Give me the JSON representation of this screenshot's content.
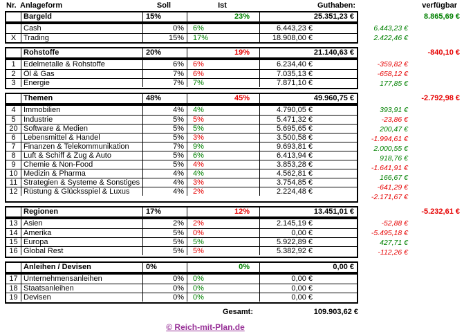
{
  "colors": {
    "positive": "#008000",
    "negative": "#e60000",
    "link_purple": "#993399",
    "border": "#000000"
  },
  "header": {
    "nr": "Nr.",
    "anlageform": "Anlageform",
    "soll": "Soll",
    "ist": "Ist",
    "guthaben": "Guthaben:",
    "verfuegbar": "verfügbar"
  },
  "sections": [
    {
      "name": "Bargeld",
      "soll": "15%",
      "ist": "23%",
      "ist_trend": "pos",
      "guthaben": "25.351,23 €",
      "verfuegbar": "8.865,69 €",
      "verfuegbar_trend": "pos",
      "rows": [
        {
          "nr": "",
          "label": "Cash",
          "soll": "0%",
          "ist": "6%",
          "ist_trend": "pos",
          "guthaben": "6.443,23 €",
          "diff": "6.443,23 €",
          "diff_trend": "pos"
        },
        {
          "nr": "X",
          "label": "Trading",
          "soll": "15%",
          "ist": "17%",
          "ist_trend": "pos",
          "guthaben": "18.908,00 €",
          "diff": "2.422,46 €",
          "diff_trend": "pos"
        }
      ]
    },
    {
      "name": "Rohstoffe",
      "soll": "20%",
      "ist": "19%",
      "ist_trend": "neg",
      "guthaben": "21.140,63 €",
      "verfuegbar": "-840,10 €",
      "verfuegbar_trend": "neg",
      "rows": [
        {
          "nr": "1",
          "label": "Edelmetalle & Rohstoffe",
          "soll": "6%",
          "ist": "6%",
          "ist_trend": "neg",
          "guthaben": "6.234,40 €",
          "diff": "-359,82 €",
          "diff_trend": "neg"
        },
        {
          "nr": "2",
          "label": "Öl & Gas",
          "soll": "7%",
          "ist": "6%",
          "ist_trend": "neg",
          "guthaben": "7.035,13 €",
          "diff": "-658,12 €",
          "diff_trend": "neg"
        },
        {
          "nr": "3",
          "label": "Energie",
          "soll": "7%",
          "ist": "7%",
          "ist_trend": "pos",
          "guthaben": "7.871,10 €",
          "diff": "177,85 €",
          "diff_trend": "pos"
        }
      ]
    },
    {
      "name": "Themen",
      "soll": "48%",
      "ist": "45%",
      "ist_trend": "neg",
      "guthaben": "49.960,75 €",
      "verfuegbar": "-2.792,98 €",
      "verfuegbar_trend": "neg",
      "rows": [
        {
          "nr": "4",
          "label": "Immobilien",
          "soll": "4%",
          "ist": "4%",
          "ist_trend": "pos",
          "guthaben": "4.790,05 €",
          "diff": "393,91 €",
          "diff_trend": "pos"
        },
        {
          "nr": "5",
          "label": "Industrie",
          "soll": "5%",
          "ist": "5%",
          "ist_trend": "neg",
          "guthaben": "5.471,32 €",
          "diff": "-23,86 €",
          "diff_trend": "neg"
        },
        {
          "nr": "20",
          "label": "Software & Medien",
          "soll": "5%",
          "ist": "5%",
          "ist_trend": "pos",
          "guthaben": "5.695,65 €",
          "diff": "200,47 €",
          "diff_trend": "pos"
        },
        {
          "nr": "6",
          "label": "Lebensmittel & Handel",
          "soll": "5%",
          "ist": "3%",
          "ist_trend": "neg",
          "guthaben": "3.500,58 €",
          "diff": "-1.994,61 €",
          "diff_trend": "neg"
        },
        {
          "nr": "7",
          "label": "Finanzen & Telekommunikation",
          "soll": "7%",
          "ist": "9%",
          "ist_trend": "pos",
          "guthaben": "9.693,81 €",
          "diff": "2.000,55 €",
          "diff_trend": "pos"
        },
        {
          "nr": "8",
          "label": "Luft & Schiff & Zug & Auto",
          "soll": "5%",
          "ist": "6%",
          "ist_trend": "pos",
          "guthaben": "6.413,94 €",
          "diff": "918,76 €",
          "diff_trend": "pos"
        },
        {
          "nr": "9",
          "label": "Chemie & Non-Food",
          "soll": "5%",
          "ist": "4%",
          "ist_trend": "neg",
          "guthaben": "3.853,28 €",
          "diff": "-1.641,91 €",
          "diff_trend": "neg"
        },
        {
          "nr": "10",
          "label": "Medizin & Pharma",
          "soll": "4%",
          "ist": "4%",
          "ist_trend": "pos",
          "guthaben": "4.562,81 €",
          "diff": "166,67 €",
          "diff_trend": "pos"
        },
        {
          "nr": "11",
          "label": "Strategien & Systeme & Sonstiges",
          "soll": "4%",
          "ist": "3%",
          "ist_trend": "neg",
          "guthaben": "3.754,85 €",
          "diff": "-641,29 €",
          "diff_trend": "neg"
        },
        {
          "nr": "12",
          "label": "Rüstung & Glücksspiel & Luxus",
          "soll": "4%",
          "ist": "2%",
          "ist_trend": "neg",
          "guthaben": "2.224,48 €",
          "diff": "-2.171,67 €",
          "diff_trend": "neg"
        }
      ]
    },
    {
      "name": "Regionen",
      "soll": "17%",
      "ist": "12%",
      "ist_trend": "neg",
      "guthaben": "13.451,01 €",
      "verfuegbar": "-5.232,61 €",
      "verfuegbar_trend": "neg",
      "rows": [
        {
          "nr": "13",
          "label": "Asien",
          "soll": "2%",
          "ist": "2%",
          "ist_trend": "neg",
          "guthaben": "2.145,19 €",
          "diff": "-52,88 €",
          "diff_trend": "neg"
        },
        {
          "nr": "14",
          "label": "Amerika",
          "soll": "5%",
          "ist": "0%",
          "ist_trend": "neg",
          "guthaben": "0,00 €",
          "diff": "-5.495,18 €",
          "diff_trend": "neg"
        },
        {
          "nr": "15",
          "label": "Europa",
          "soll": "5%",
          "ist": "5%",
          "ist_trend": "pos",
          "guthaben": "5.922,89 €",
          "diff": "427,71 €",
          "diff_trend": "pos"
        },
        {
          "nr": "16",
          "label": "Global Rest",
          "soll": "5%",
          "ist": "5%",
          "ist_trend": "neg",
          "guthaben": "5.382,92 €",
          "diff": "-112,26 €",
          "diff_trend": "neg"
        }
      ]
    },
    {
      "name": "Anleihen / Devisen",
      "soll": "0%",
      "ist": "0%",
      "ist_trend": "pos",
      "guthaben": "0,00 €",
      "verfuegbar": "",
      "verfuegbar_trend": "pos",
      "rows": [
        {
          "nr": "17",
          "label": "Unternehmensanleihen",
          "soll": "0%",
          "ist": "0%",
          "ist_trend": "pos",
          "guthaben": "0,00 €",
          "diff": "",
          "diff_trend": "pos"
        },
        {
          "nr": "18",
          "label": "Staatsanleihen",
          "soll": "0%",
          "ist": "0%",
          "ist_trend": "pos",
          "guthaben": "0,00 €",
          "diff": "",
          "diff_trend": "pos"
        },
        {
          "nr": "19",
          "label": "Devisen",
          "soll": "0%",
          "ist": "0%",
          "ist_trend": "pos",
          "guthaben": "0,00 €",
          "diff": "",
          "diff_trend": "pos"
        }
      ]
    }
  ],
  "totals": {
    "label": "Gesamt:",
    "value": "109.903,62 €"
  },
  "footer": {
    "copyright_link": "© Reich-mit-Plan.de"
  }
}
